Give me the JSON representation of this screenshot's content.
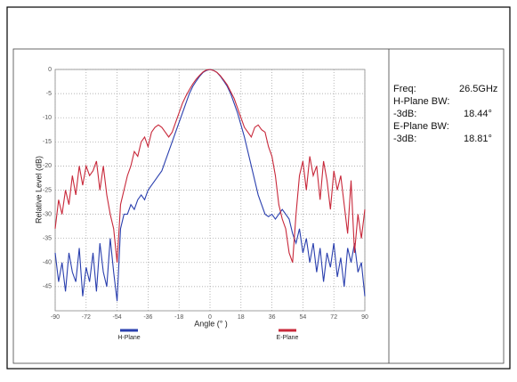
{
  "chart_data": {
    "type": "line",
    "xlabel": "Angle (° )",
    "ylabel": "Relative Level (dB)",
    "x": [
      -90,
      -88,
      -86,
      -84,
      -82,
      -80,
      -78,
      -76,
      -74,
      -72,
      -70,
      -68,
      -66,
      -64,
      -62,
      -60,
      -58,
      -56,
      -54,
      -52,
      -50,
      -48,
      -46,
      -44,
      -42,
      -40,
      -38,
      -36,
      -34,
      -32,
      -30,
      -28,
      -26,
      -24,
      -22,
      -20,
      -18,
      -16,
      -14,
      -12,
      -10,
      -8,
      -6,
      -4,
      -2,
      0,
      2,
      4,
      6,
      8,
      10,
      12,
      14,
      16,
      18,
      20,
      22,
      24,
      26,
      28,
      30,
      32,
      34,
      36,
      38,
      40,
      42,
      44,
      46,
      48,
      50,
      52,
      54,
      56,
      58,
      60,
      62,
      64,
      66,
      68,
      70,
      72,
      74,
      76,
      78,
      80,
      82,
      84,
      86,
      88,
      90
    ],
    "series": [
      {
        "name": "H-Plane",
        "color": "#2a3fae",
        "values": [
          -38,
          -44,
          -40,
          -46,
          -38,
          -42,
          -44,
          -37,
          -47,
          -41,
          -44,
          -38,
          -46,
          -36,
          -42,
          -45,
          -35,
          -42,
          -48,
          -33,
          -30,
          -30,
          -28,
          -29,
          -27,
          -26,
          -27,
          -25,
          -24,
          -23,
          -22,
          -21,
          -19,
          -17,
          -15,
          -13,
          -11,
          -9,
          -7,
          -5,
          -3.5,
          -2.4,
          -1.4,
          -0.6,
          -0.2,
          0,
          -0.2,
          -0.6,
          -1.4,
          -2.4,
          -3.5,
          -5,
          -7,
          -9,
          -11.5,
          -14,
          -17,
          -20,
          -23,
          -26,
          -28,
          -30,
          -30.5,
          -30,
          -31,
          -30,
          -29,
          -30,
          -31,
          -34,
          -36,
          -33,
          -38,
          -35,
          -40,
          -36,
          -42,
          -37,
          -44,
          -38,
          -41,
          -36,
          -43,
          -39,
          -45,
          -37,
          -40,
          -36,
          -42,
          -40,
          -47
        ]
      },
      {
        "name": "E-Plane",
        "color": "#c8283a",
        "values": [
          -33,
          -27,
          -30,
          -25,
          -28,
          -22,
          -26,
          -20,
          -24,
          -20,
          -22,
          -21,
          -19,
          -25,
          -20,
          -26,
          -30,
          -33,
          -40,
          -28,
          -25,
          -22,
          -20,
          -17,
          -18,
          -15,
          -14,
          -16,
          -13,
          -12,
          -11.5,
          -12,
          -13,
          -14,
          -13,
          -11,
          -9,
          -7,
          -5.5,
          -4.2,
          -3,
          -2,
          -1.2,
          -0.5,
          -0.1,
          0,
          -0.2,
          -0.6,
          -1.3,
          -2.2,
          -3.2,
          -4.6,
          -6,
          -8,
          -10,
          -12,
          -13,
          -14,
          -12,
          -11.5,
          -12.5,
          -13,
          -16,
          -18,
          -22,
          -28,
          -31,
          -33,
          -38,
          -40,
          -30,
          -22,
          -19,
          -25,
          -18,
          -22,
          -20,
          -27,
          -19,
          -23,
          -29,
          -21,
          -25,
          -22,
          -28,
          -34,
          -23,
          -38,
          -30,
          -35,
          -29
        ]
      }
    ],
    "xlim": [
      -90,
      90
    ],
    "xticks": [
      -90,
      -72,
      -54,
      -36,
      -18,
      0,
      18,
      36,
      54,
      72,
      90
    ],
    "ylim": [
      -50,
      0
    ],
    "yticks": [
      0,
      -5,
      -10,
      -15,
      -20,
      -25,
      -30,
      -35,
      -40,
      -45
    ],
    "grid": true,
    "legend": "bottom"
  },
  "panel": {
    "rows": [
      [
        "Freq:",
        "26.5GHz"
      ],
      [
        "H-Plane BW:"
      ],
      [
        "-3dB:",
        "18.44°"
      ],
      [
        "E-Plane BW:"
      ],
      [
        "-3dB:",
        "18.81°"
      ]
    ]
  }
}
